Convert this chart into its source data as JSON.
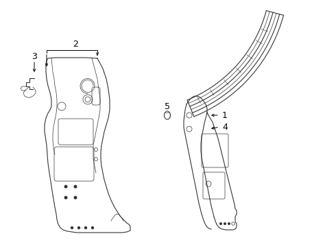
{
  "bg_color": "#ffffff",
  "line_color": "#333333",
  "label_color": "#000000",
  "fig_width": 4.9,
  "fig_height": 3.6,
  "dpi": 100,
  "xlim": [
    0,
    4.9
  ],
  "ylim": [
    0,
    3.6
  ]
}
